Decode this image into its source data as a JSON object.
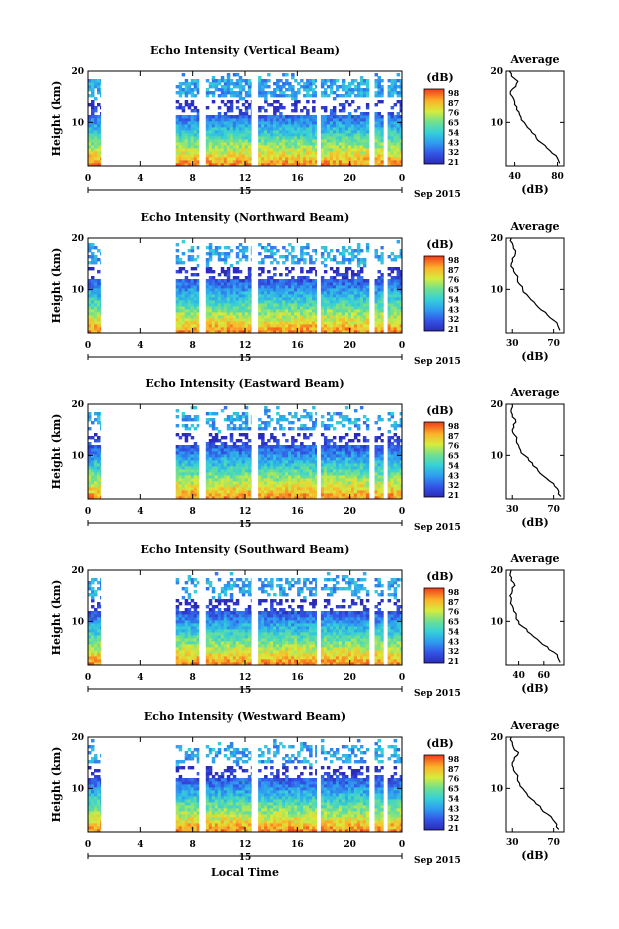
{
  "chart_data": [
    {
      "type": "heatmap",
      "title": "Echo Intensity (Vertical Beam)",
      "ylabel": "Height (km)",
      "y_ticks": [
        "20",
        "10"
      ],
      "x_ticks": [
        "0",
        "4",
        "8",
        "12",
        "16",
        "20",
        "0"
      ],
      "date_day": "15",
      "date_month_year": "Sep 2015",
      "ylim": [
        1.5,
        20
      ],
      "xlim": [
        0,
        24
      ],
      "data_segments": [
        [
          0,
          1.0
        ],
        [
          6.7,
          8.5
        ],
        [
          9.0,
          12.5
        ],
        [
          13.0,
          17.5
        ],
        [
          17.8,
          21.5
        ],
        [
          21.9,
          22.6
        ],
        [
          22.9,
          24
        ]
      ],
      "colorbar": {
        "unit": "(dB)",
        "labels": [
          "98",
          "87",
          "76",
          "65",
          "54",
          "43",
          "32",
          "21"
        ]
      },
      "average_profile": {
        "title": "Average",
        "xlabel": "(dB)",
        "x_ticks": [
          "40",
          "80"
        ],
        "y_ticks": [
          "20",
          "10"
        ],
        "xlim": [
          32,
          86
        ],
        "height_km": [
          2,
          3,
          4,
          5,
          6,
          7,
          8,
          9,
          10,
          11,
          12,
          13,
          14,
          15,
          16,
          17,
          18,
          19,
          20
        ],
        "db": [
          82,
          80,
          75,
          70,
          65,
          60,
          56,
          52,
          49,
          46,
          44,
          42,
          40,
          38,
          36,
          41,
          43,
          37,
          35
        ]
      }
    },
    {
      "type": "heatmap",
      "title": "Echo Intensity (Northward Beam)",
      "ylabel": "Height (km)",
      "y_ticks": [
        "20",
        "10"
      ],
      "x_ticks": [
        "0",
        "4",
        "8",
        "12",
        "16",
        "20",
        "0"
      ],
      "date_day": "15",
      "date_month_year": "Sep 2015",
      "ylim": [
        1.5,
        20
      ],
      "xlim": [
        0,
        24
      ],
      "data_segments": [
        [
          0,
          1.0
        ],
        [
          6.7,
          8.5
        ],
        [
          9.0,
          12.5
        ],
        [
          13.0,
          17.5
        ],
        [
          17.8,
          21.5
        ],
        [
          21.9,
          22.6
        ],
        [
          22.9,
          24
        ]
      ],
      "colorbar": {
        "unit": "(dB)",
        "labels": [
          "98",
          "87",
          "76",
          "65",
          "54",
          "43",
          "32",
          "21"
        ]
      },
      "average_profile": {
        "title": "Average",
        "xlabel": "(dB)",
        "x_ticks": [
          "30",
          "70"
        ],
        "y_ticks": [
          "20",
          "10"
        ],
        "xlim": [
          24,
          80
        ],
        "height_km": [
          2,
          3,
          4,
          5,
          6,
          7,
          8,
          9,
          10,
          11,
          12,
          13,
          14,
          15,
          16,
          17,
          18,
          19,
          20
        ],
        "db": [
          76,
          74,
          70,
          64,
          58,
          53,
          48,
          44,
          40,
          37,
          35,
          33,
          31,
          29,
          30,
          33,
          31,
          30,
          29
        ]
      }
    },
    {
      "type": "heatmap",
      "title": "Echo Intensity (Eastward Beam)",
      "ylabel": "Height (km)",
      "y_ticks": [
        "20",
        "10"
      ],
      "x_ticks": [
        "0",
        "4",
        "8",
        "12",
        "16",
        "20",
        "0"
      ],
      "date_day": "15",
      "date_month_year": "Sep 2015",
      "ylim": [
        1.5,
        20
      ],
      "xlim": [
        0,
        24
      ],
      "data_segments": [
        [
          0,
          1.0
        ],
        [
          6.7,
          8.5
        ],
        [
          9.0,
          12.5
        ],
        [
          13.0,
          17.5
        ],
        [
          17.8,
          21.5
        ],
        [
          21.9,
          22.6
        ],
        [
          22.9,
          24
        ]
      ],
      "colorbar": {
        "unit": "(dB)",
        "labels": [
          "98",
          "87",
          "76",
          "65",
          "54",
          "43",
          "32",
          "21"
        ]
      },
      "average_profile": {
        "title": "Average",
        "xlabel": "(dB)",
        "x_ticks": [
          "30",
          "70"
        ],
        "y_ticks": [
          "20",
          "10"
        ],
        "xlim": [
          24,
          80
        ],
        "height_km": [
          2,
          3,
          4,
          5,
          6,
          7,
          8,
          9,
          10,
          11,
          12,
          13,
          14,
          15,
          16,
          17,
          18,
          19,
          20
        ],
        "db": [
          77,
          75,
          71,
          66,
          60,
          55,
          50,
          46,
          42,
          38,
          36,
          34,
          32,
          30,
          31,
          33,
          30,
          29,
          30
        ]
      }
    },
    {
      "type": "heatmap",
      "title": "Echo Intensity (Southward Beam)",
      "ylabel": "Height (km)",
      "y_ticks": [
        "20",
        "10"
      ],
      "x_ticks": [
        "0",
        "4",
        "8",
        "12",
        "16",
        "20",
        "0"
      ],
      "date_day": "15",
      "date_month_year": "Sep 2015",
      "ylim": [
        1.5,
        20
      ],
      "xlim": [
        0,
        24
      ],
      "data_segments": [
        [
          0,
          1.0
        ],
        [
          6.7,
          8.5
        ],
        [
          9.0,
          12.5
        ],
        [
          13.0,
          17.5
        ],
        [
          17.8,
          21.5
        ],
        [
          21.9,
          22.6
        ],
        [
          22.9,
          24
        ]
      ],
      "colorbar": {
        "unit": "(dB)",
        "labels": [
          "98",
          "87",
          "76",
          "65",
          "54",
          "43",
          "32",
          "21"
        ]
      },
      "average_profile": {
        "title": "Average",
        "xlabel": "(dB)",
        "x_ticks": [
          "40",
          "60"
        ],
        "y_ticks": [
          "20",
          "10"
        ],
        "xlim": [
          30,
          76
        ],
        "height_km": [
          2,
          3,
          4,
          5,
          6,
          7,
          8,
          9,
          10,
          11,
          12,
          13,
          14,
          15,
          16,
          17,
          18,
          19,
          20
        ],
        "db": [
          73,
          71,
          68,
          63,
          57,
          52,
          47,
          43,
          40,
          38,
          36,
          35,
          34,
          33,
          35,
          37,
          34,
          33,
          34
        ]
      }
    },
    {
      "type": "heatmap",
      "title": "Echo Intensity (Westward Beam)",
      "ylabel": "Height (km)",
      "y_ticks": [
        "20",
        "10"
      ],
      "x_ticks": [
        "0",
        "4",
        "8",
        "12",
        "16",
        "20",
        "0"
      ],
      "date_day": "15",
      "date_month_year": "Sep 2015",
      "xlabel": "Local Time",
      "ylim": [
        1.5,
        20
      ],
      "xlim": [
        0,
        24
      ],
      "data_segments": [
        [
          0,
          1.0
        ],
        [
          6.7,
          8.5
        ],
        [
          9.0,
          12.5
        ],
        [
          13.0,
          17.5
        ],
        [
          17.8,
          21.5
        ],
        [
          21.9,
          22.6
        ],
        [
          22.9,
          24
        ]
      ],
      "colorbar": {
        "unit": "(dB)",
        "labels": [
          "98",
          "87",
          "76",
          "65",
          "54",
          "43",
          "32",
          "21"
        ]
      },
      "average_profile": {
        "title": "Average",
        "xlabel": "(dB)",
        "x_ticks": [
          "30",
          "70"
        ],
        "y_ticks": [
          "20",
          "10"
        ],
        "xlim": [
          24,
          80
        ],
        "height_km": [
          2,
          3,
          4,
          5,
          6,
          7,
          8,
          9,
          10,
          11,
          12,
          13,
          14,
          15,
          16,
          17,
          18,
          19,
          20
        ],
        "db": [
          75,
          73,
          69,
          64,
          58,
          53,
          48,
          44,
          40,
          37,
          35,
          33,
          31,
          30,
          32,
          36,
          31,
          30,
          29
        ]
      }
    }
  ]
}
